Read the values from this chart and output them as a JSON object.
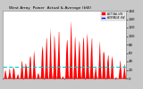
{
  "title": "West Array  Power  Actual & Average (kW)",
  "bg_color": "#c8c8c8",
  "plot_bg_color": "#ffffff",
  "bar_color": "#ff0000",
  "avg_line_color": "#00cccc",
  "grid_color": "#ffffff",
  "text_color": "#000000",
  "legend_actual_color": "#ff0000",
  "legend_avg_color": "#0000ff",
  "legend_actual": "ACTUAL kW",
  "legend_avg": "AVERAGE kW",
  "ylim": [
    0,
    160
  ],
  "ytick_vals": [
    0,
    20,
    40,
    60,
    80,
    100,
    120,
    140,
    160
  ],
  "ytick_labels": [
    "0",
    "20",
    "40",
    "60",
    "80",
    "100",
    "120",
    "140",
    "160"
  ],
  "num_points": 300,
  "avg_value": 28,
  "figsize": [
    1.6,
    1.0
  ],
  "dpi": 100
}
